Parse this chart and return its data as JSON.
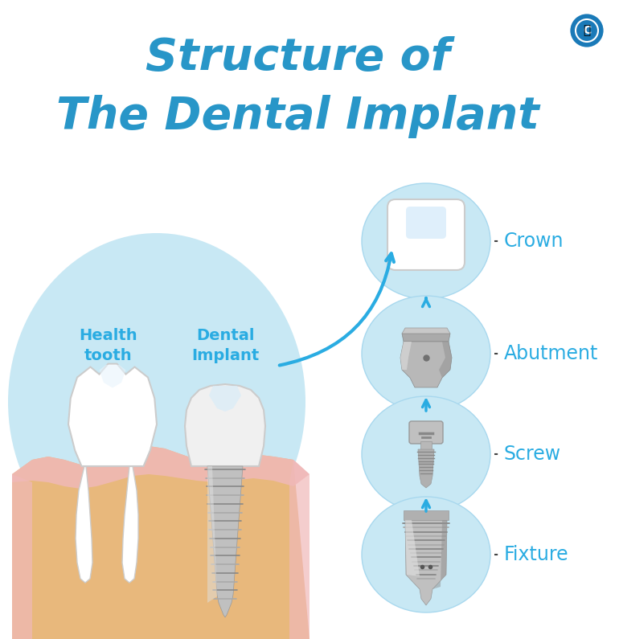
{
  "title_line1": "Structure of",
  "title_line2": "The Dental Implant",
  "title_color": "#2896c8",
  "background_color": "#ffffff",
  "labels": [
    "Crown",
    "Abutment",
    "Screw",
    "Fixture"
  ],
  "label_color": "#2aace2",
  "left_label1": "Health\ntooth",
  "left_label2": "Dental\nImplant",
  "left_label_color": "#2aace2",
  "circle_fill": "#c8e8f4",
  "circle_edge": "#a8d8ee",
  "arrow_color": "#2aace2",
  "dotted_color": "#444444",
  "gum_color": "#e8b87c",
  "gum_pink": "#f0b8b8",
  "logo_color": "#1a7ab8"
}
